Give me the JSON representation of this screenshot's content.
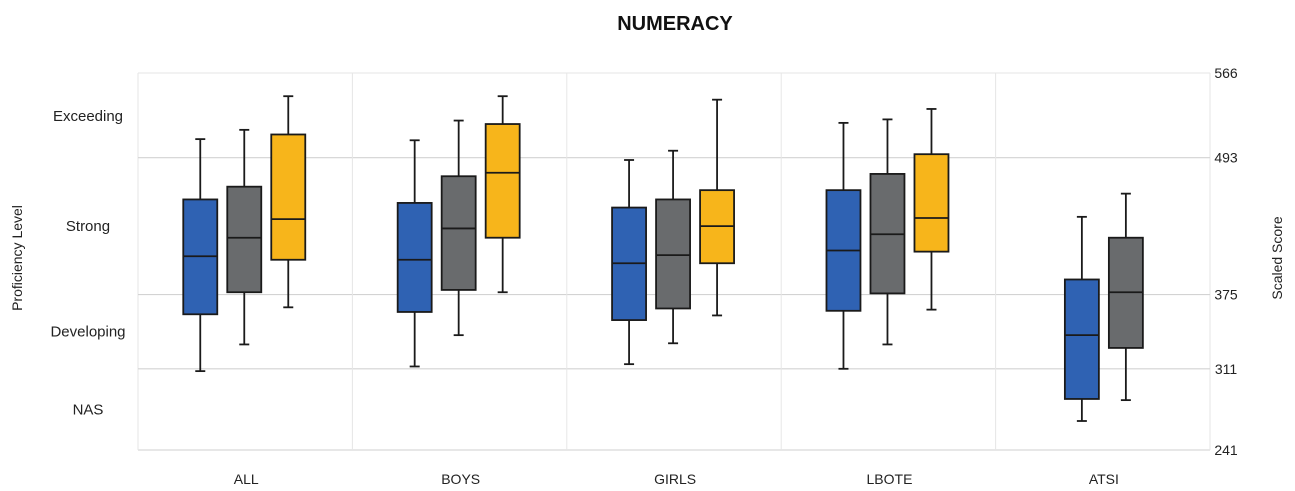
{
  "chart_data": {
    "type": "boxplot",
    "title": "NUMERACY",
    "ylabel_left": "Proficiency Level",
    "ylabel_right": "Scaled Score",
    "proficiency_levels": [
      {
        "label": "Exceeding",
        "score": 529
      },
      {
        "label": "Strong",
        "score": 434
      },
      {
        "label": "Developing",
        "score": 343
      },
      {
        "label": "NAS",
        "score": 276
      }
    ],
    "right_ticks": [
      566,
      493,
      375,
      311,
      241
    ],
    "band_boundaries": [
      493,
      375,
      311
    ],
    "ylim": [
      241,
      566
    ],
    "categories": [
      "ALL",
      "BOYS",
      "GIRLS",
      "LBOTE",
      "ATSI"
    ],
    "colors": [
      "#2f62b3",
      "#696b6d",
      "#f7b51b"
    ],
    "series": [
      {
        "values": [
          {
            "min": 309,
            "q1": 358,
            "median": 408,
            "q3": 457,
            "max": 509
          },
          {
            "min": 313,
            "q1": 360,
            "median": 405,
            "q3": 454,
            "max": 508
          },
          {
            "min": 315,
            "q1": 353,
            "median": 402,
            "q3": 450,
            "max": 491
          },
          {
            "min": 311,
            "q1": 361,
            "median": 413,
            "q3": 465,
            "max": 523
          },
          {
            "min": 266,
            "q1": 285,
            "median": 340,
            "q3": 388,
            "max": 442
          }
        ]
      },
      {
        "values": [
          {
            "min": 332,
            "q1": 377,
            "median": 424,
            "q3": 468,
            "max": 517
          },
          {
            "min": 340,
            "q1": 379,
            "median": 432,
            "q3": 477,
            "max": 525
          },
          {
            "min": 333,
            "q1": 363,
            "median": 409,
            "q3": 457,
            "max": 499
          },
          {
            "min": 332,
            "q1": 376,
            "median": 427,
            "q3": 479,
            "max": 526
          },
          {
            "min": 284,
            "q1": 329,
            "median": 377,
            "q3": 424,
            "max": 462
          }
        ]
      },
      {
        "values": [
          {
            "min": 364,
            "q1": 405,
            "median": 440,
            "q3": 513,
            "max": 546
          },
          {
            "min": 377,
            "q1": 424,
            "median": 480,
            "q3": 522,
            "max": 546
          },
          {
            "min": 357,
            "q1": 402,
            "median": 434,
            "q3": 465,
            "max": 543
          },
          {
            "min": 362,
            "q1": 412,
            "median": 441,
            "q3": 496,
            "max": 535
          },
          null
        ]
      }
    ]
  }
}
